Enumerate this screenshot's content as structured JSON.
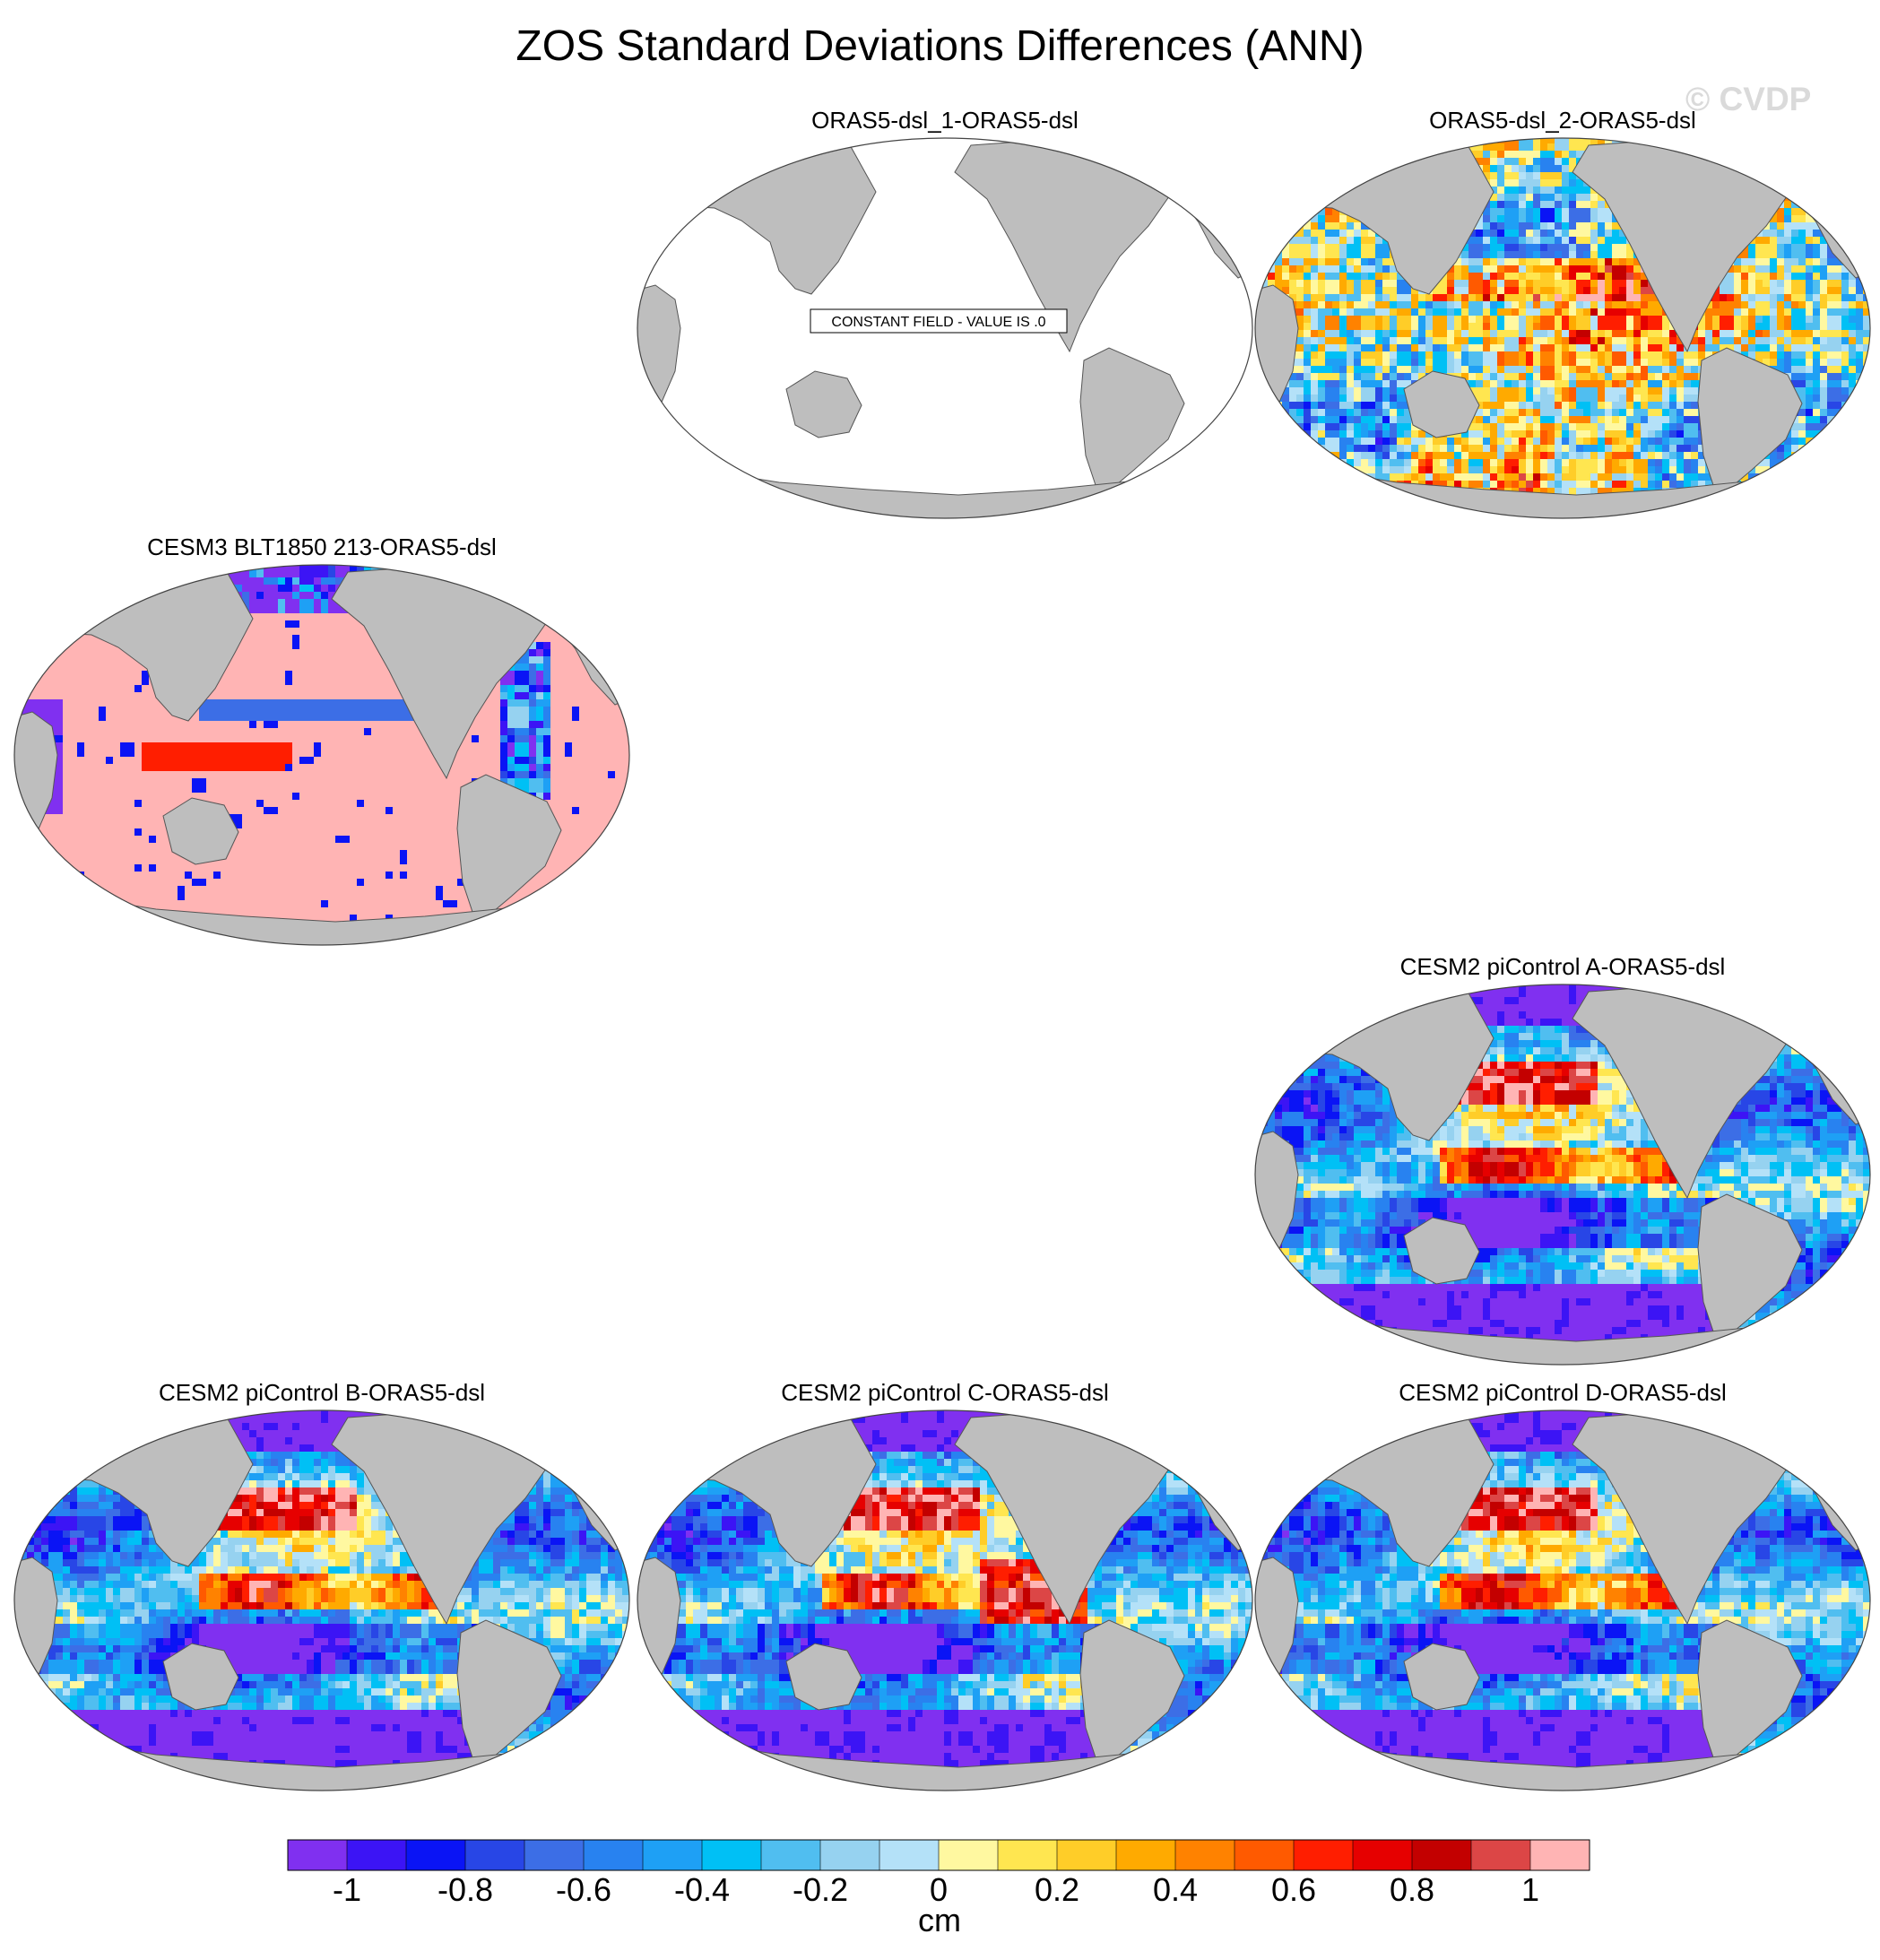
{
  "title": "ZOS Standard Deviations Differences (ANN)",
  "watermark": "© CVDP",
  "panels": [
    {
      "id": "oras5-dsl-1",
      "title": "ORAS5-dsl_1-ORAS5-dsl",
      "pattern": "constant",
      "note": "CONSTANT FIELD - VALUE IS .0"
    },
    {
      "id": "oras5-dsl-2",
      "title": "ORAS5-dsl_2-ORAS5-dsl",
      "pattern": "obs"
    },
    {
      "id": "cesm3-blt1850",
      "title": "CESM3 BLT1850 213-ORAS5-dsl",
      "pattern": "cesm3"
    },
    {
      "id": "cesm2-picontrol-a",
      "title": "CESM2 piControl A-ORAS5-dsl",
      "pattern": "cesm2"
    },
    {
      "id": "cesm2-picontrol-b",
      "title": "CESM2 piControl B-ORAS5-dsl",
      "pattern": "cesm2"
    },
    {
      "id": "cesm2-picontrol-c",
      "title": "CESM2 piControl C-ORAS5-dsl",
      "pattern": "cesm2c"
    },
    {
      "id": "cesm2-picontrol-d",
      "title": "CESM2 piControl D-ORAS5-dsl",
      "pattern": "cesm2"
    }
  ],
  "colorbar": {
    "unit": "cm",
    "tick_labels": [
      "-1",
      "-0.8",
      "-0.6",
      "-0.4",
      "-0.2",
      "0",
      "0.2",
      "0.4",
      "0.6",
      "0.8",
      "1"
    ],
    "colors": [
      "#8030f0",
      "#3c14f5",
      "#0a14f5",
      "#2846e6",
      "#3c6ee6",
      "#2882f0",
      "#1ea0f5",
      "#00c0f5",
      "#50bef0",
      "#96d2f0",
      "#b4e1f8",
      "#fff8a0",
      "#ffe650",
      "#ffcd28",
      "#ffaa00",
      "#ff8200",
      "#ff5a00",
      "#ff1e00",
      "#e60000",
      "#c30000",
      "#dc4646",
      "#ffb4b4"
    ]
  },
  "style": {
    "land": "#bebebe",
    "no_data": "#ffffff"
  }
}
